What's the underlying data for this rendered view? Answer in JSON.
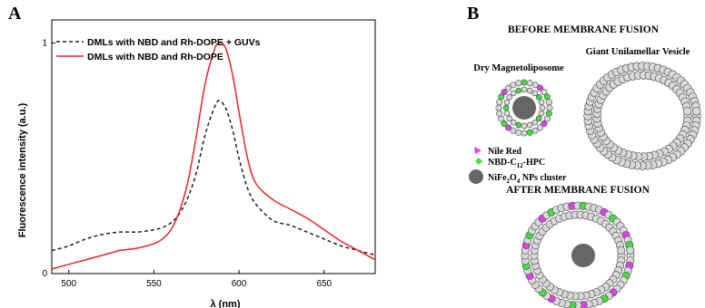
{
  "panel_a": {
    "letter": "A"
  },
  "panel_b": {
    "letter": "B",
    "before_title": "BEFORE MEMBRANE FUSION",
    "after_title": "AFTER MEMBRANE FUSION",
    "dml_label": "Dry Magnetoliposome",
    "guv_label": "Giant Unilamellar Vesicle",
    "legend": [
      {
        "label": "Nile Red",
        "color": "#e040e8"
      },
      {
        "label_parts": [
          "NBD-C",
          "12",
          "-HPC"
        ],
        "color": "#40e040"
      },
      {
        "label_parts": [
          "NiFe",
          "2",
          "O",
          "4",
          " NPs cluster"
        ],
        "color": "#666666"
      }
    ]
  },
  "chart_data": {
    "type": "line",
    "title": "",
    "xlabel": "λ (nm)",
    "ylabel": "Fluorescence intensity (a.u.)",
    "xlim": [
      490,
      680
    ],
    "ylim": [
      0,
      1.1
    ],
    "xticks": [
      500,
      550,
      600,
      650
    ],
    "yticks": [
      0,
      1
    ],
    "ytick_labels": [
      "0",
      "1"
    ],
    "legend_position": "top-left",
    "series": [
      {
        "name": "DMLs with NBD and Rh-DOPE + GUVs",
        "color": "#222222",
        "style": "dashed",
        "x": [
          490,
          500,
          510,
          520,
          530,
          540,
          550,
          555,
          560,
          565,
          570,
          575,
          580,
          585,
          588,
          592,
          596,
          600,
          605,
          610,
          620,
          630,
          640,
          650,
          660,
          670,
          680
        ],
        "y": [
          0.1,
          0.12,
          0.15,
          0.17,
          0.18,
          0.18,
          0.19,
          0.2,
          0.22,
          0.26,
          0.33,
          0.44,
          0.6,
          0.71,
          0.75,
          0.72,
          0.63,
          0.5,
          0.37,
          0.3,
          0.23,
          0.21,
          0.18,
          0.15,
          0.12,
          0.1,
          0.08
        ]
      },
      {
        "name": "DMLs with NBD and Rh-DOPE",
        "color": "#e8252a",
        "style": "solid",
        "x": [
          490,
          500,
          510,
          520,
          530,
          540,
          550,
          555,
          560,
          565,
          570,
          575,
          580,
          585,
          588,
          592,
          596,
          600,
          605,
          610,
          620,
          630,
          640,
          650,
          660,
          670,
          680
        ],
        "y": [
          0.02,
          0.04,
          0.06,
          0.08,
          0.1,
          0.11,
          0.13,
          0.15,
          0.19,
          0.27,
          0.4,
          0.6,
          0.82,
          0.96,
          1.0,
          0.98,
          0.87,
          0.7,
          0.5,
          0.39,
          0.32,
          0.28,
          0.24,
          0.19,
          0.14,
          0.1,
          0.06
        ]
      }
    ]
  }
}
